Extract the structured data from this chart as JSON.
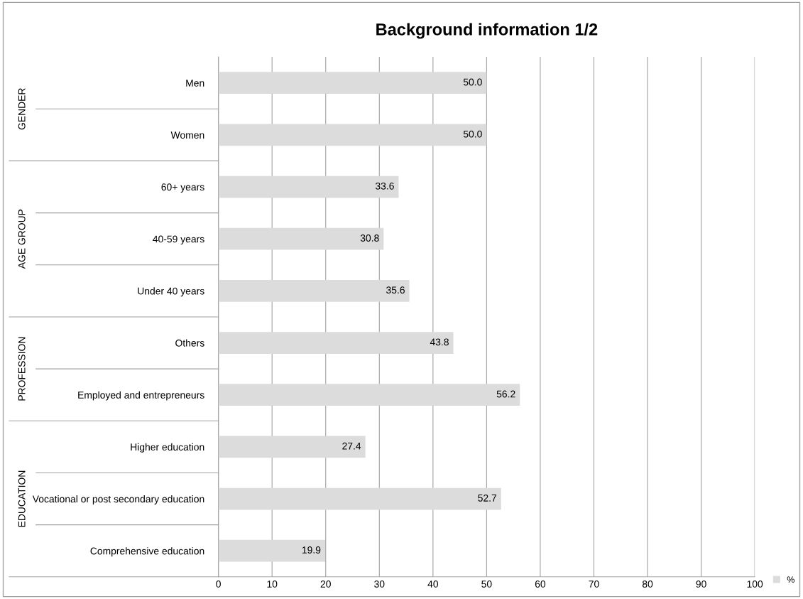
{
  "chart_data": {
    "type": "bar",
    "orientation": "horizontal",
    "title": "Background information 1/2",
    "categories": [
      "Men",
      "Women",
      "60+ years",
      "40-59 years",
      "Under 40 years",
      "Others",
      "Employed and entrepreneurs",
      "Higher education",
      "Vocational or post secondary education",
      "Comprehensive education"
    ],
    "series": [
      {
        "name": "%",
        "color": "#dcdcdc",
        "values": [
          50.0,
          50.0,
          33.6,
          30.8,
          35.6,
          43.8,
          56.2,
          27.4,
          52.7,
          19.9
        ],
        "value_labels": [
          "50.0",
          "50.0",
          "33.6",
          "30.8",
          "35.6",
          "43.8",
          "56.2",
          "27.4",
          "52.7",
          "19.9"
        ]
      }
    ],
    "xlim": [
      0,
      100
    ],
    "xticks": [
      0,
      10,
      20,
      30,
      40,
      50,
      60,
      70,
      80,
      90,
      100
    ],
    "grid": "x",
    "legend": "bottom right",
    "annotations": [
      "GENDER",
      "AGE GROUP",
      "PROFESSION",
      "EDUCATION"
    ]
  }
}
